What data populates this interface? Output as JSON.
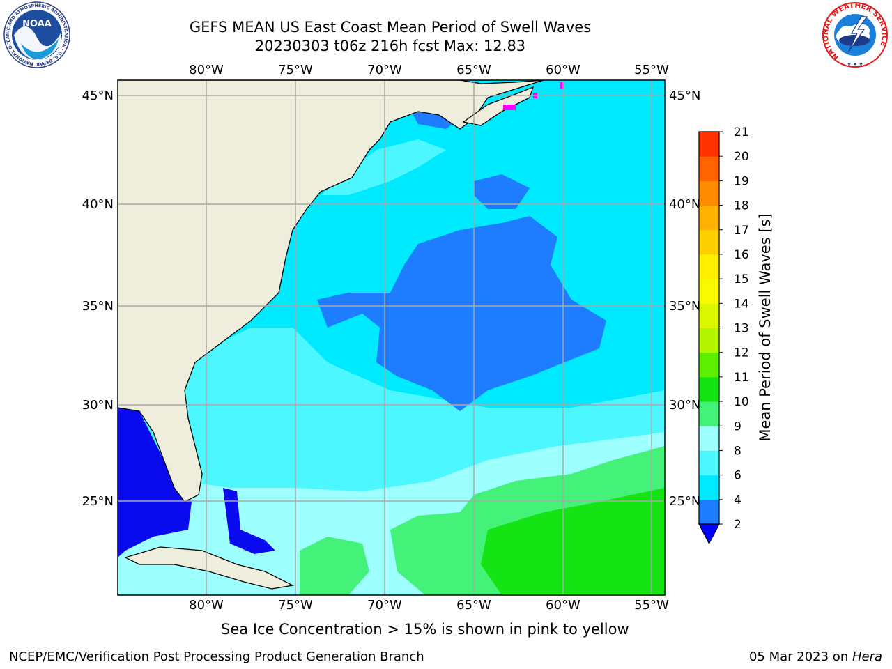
{
  "title": {
    "line1": "GEFS MEAN US East Coast Mean Period of Swell Waves",
    "line2": "20230303 t06z 216h fcst   Max: 12.83"
  },
  "map": {
    "lon_ticks": [
      "80°W",
      "75°W",
      "70°W",
      "65°W",
      "60°W",
      "55°W"
    ],
    "lat_ticks": [
      "45°N",
      "40°N",
      "35°N",
      "30°N",
      "25°N"
    ],
    "colors": {
      "land": "#efeedc",
      "grid": "#a8a8a8",
      "level_2_4": "#1e7cff",
      "level_4_6": "#00eaff",
      "level_6_8": "#4cf7ff",
      "level_8_9": "#9effff",
      "level_9_10": "#44f27a",
      "level_10_11": "#14e414",
      "below_2": "#0a0aee",
      "ice": "#ff00ff"
    }
  },
  "colorbar": {
    "label": "Mean Period of Swell Waves [s]",
    "ticks": [
      "2",
      "4",
      "6",
      "8",
      "9",
      "10",
      "11",
      "12",
      "13",
      "14",
      "15",
      "16",
      "17",
      "18",
      "19",
      "20",
      "21"
    ],
    "colors": [
      "#1e7cff",
      "#00eaff",
      "#4cf7ff",
      "#9effff",
      "#44f27a",
      "#14e414",
      "#5ef000",
      "#b6f500",
      "#dcf800",
      "#f8fa00",
      "#fff000",
      "#ffd000",
      "#ffb000",
      "#ff8c00",
      "#ff6400",
      "#ff3200",
      "#ff0000"
    ],
    "extend_color": "#0000ff"
  },
  "footer": {
    "note": "Sea Ice Concentration > 15% is shown in pink to yellow",
    "credit_left": "NCEP/EMC/Verification Post Processing Product Generation Branch",
    "credit_date": "05 Mar 2023 on ",
    "credit_host": "Hera"
  },
  "logos": {
    "noara_text": "NOAA",
    "noaa_ring": "NATIONAL OCEANIC AND ATMOSPHERIC ADMINISTRATION · U.S. DEPARTMENT OF COMMERCE",
    "nws_ring": "NATIONAL WEATHER SERVICE"
  }
}
